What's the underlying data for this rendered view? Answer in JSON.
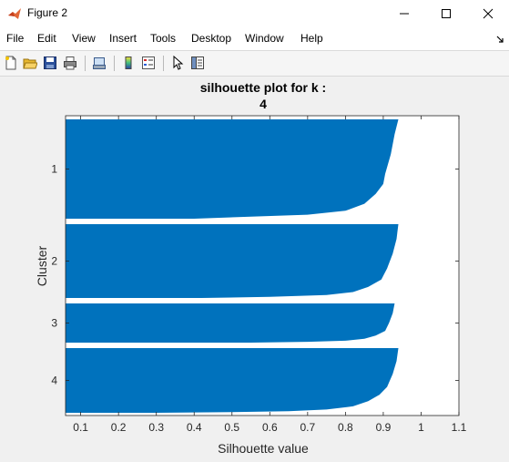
{
  "window": {
    "title": "Figure 2",
    "icon": "matlab-logo-icon",
    "controls": [
      "minimize-icon",
      "maximize-icon",
      "close-icon"
    ]
  },
  "menu": [
    "File",
    "Edit",
    "View",
    "Insert",
    "Tools",
    "Desktop",
    "Window",
    "Help"
  ],
  "toolbar": {
    "buttons": [
      "new-figure-icon",
      "open-file-icon",
      "save-icon",
      "print-icon",
      "link-icon",
      "colorbar-icon",
      "legend-icon",
      "pointer-icon",
      "property-editor-icon"
    ]
  },
  "chart_data": {
    "type": "bar",
    "orientation": "horizontal",
    "title_line1": "silhouette plot for k :",
    "title_line2": "4",
    "xlabel": "Silhouette value",
    "ylabel": "Cluster",
    "xlim": [
      0.06,
      1.1
    ],
    "xticks": [
      "0.1",
      "0.2",
      "0.3",
      "0.4",
      "0.5",
      "0.6",
      "0.7",
      "0.8",
      "0.9",
      "1",
      "1.1"
    ],
    "yticks": [
      "1",
      "2",
      "3",
      "4"
    ],
    "bar_color": "#0072bd",
    "grid": false,
    "clusters": [
      {
        "label": "1",
        "profile": [
          [
            0.0,
            0.94
          ],
          [
            0.15,
            0.93
          ],
          [
            0.35,
            0.92
          ],
          [
            0.55,
            0.905
          ],
          [
            0.65,
            0.9
          ],
          [
            0.75,
            0.88
          ],
          [
            0.85,
            0.85
          ],
          [
            0.92,
            0.8
          ],
          [
            0.96,
            0.7
          ],
          [
            0.98,
            0.55
          ],
          [
            1.0,
            0.4
          ]
        ]
      },
      {
        "label": "2",
        "profile": [
          [
            0.0,
            0.94
          ],
          [
            0.2,
            0.935
          ],
          [
            0.4,
            0.925
          ],
          [
            0.6,
            0.91
          ],
          [
            0.75,
            0.895
          ],
          [
            0.85,
            0.86
          ],
          [
            0.92,
            0.82
          ],
          [
            0.96,
            0.75
          ],
          [
            0.985,
            0.6
          ],
          [
            1.0,
            0.42
          ]
        ]
      },
      {
        "label": "3",
        "profile": [
          [
            0.0,
            0.93
          ],
          [
            0.25,
            0.925
          ],
          [
            0.5,
            0.915
          ],
          [
            0.7,
            0.905
          ],
          [
            0.82,
            0.88
          ],
          [
            0.9,
            0.85
          ],
          [
            0.95,
            0.8
          ],
          [
            0.98,
            0.7
          ],
          [
            1.0,
            0.55
          ]
        ]
      },
      {
        "label": "4",
        "profile": [
          [
            0.0,
            0.94
          ],
          [
            0.2,
            0.935
          ],
          [
            0.4,
            0.925
          ],
          [
            0.6,
            0.91
          ],
          [
            0.72,
            0.89
          ],
          [
            0.82,
            0.86
          ],
          [
            0.9,
            0.82
          ],
          [
            0.95,
            0.75
          ],
          [
            0.975,
            0.65
          ],
          [
            0.99,
            0.5
          ],
          [
            1.0,
            0.3
          ]
        ]
      }
    ]
  }
}
